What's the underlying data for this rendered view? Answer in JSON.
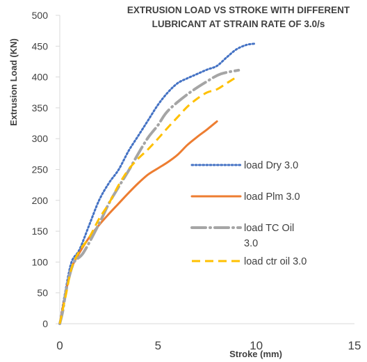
{
  "chart_data": {
    "type": "line",
    "title_line1": "EXTRUSION LOAD VS STROKE WITH DIFFERENT",
    "title_line2": "LUBRICANT AT STRAIN RATE OF 3.0/s",
    "xlabel": "Stroke (mm)",
    "ylabel": "Extrusion Load (KN)",
    "xlim": [
      0,
      15
    ],
    "ylim": [
      0,
      500
    ],
    "x_ticks": [
      "0",
      "5",
      "10",
      "15"
    ],
    "y_ticks": [
      "0",
      "50",
      "100",
      "150",
      "200",
      "250",
      "300",
      "350",
      "400",
      "450",
      "500"
    ],
    "grid": false,
    "legend_position": "right",
    "series": [
      {
        "name": "load Dry 3.0",
        "color": "#4472C4",
        "style": "dotted",
        "points": [
          [
            0,
            0
          ],
          [
            0.3,
            55
          ],
          [
            0.6,
            100
          ],
          [
            1.0,
            120
          ],
          [
            1.5,
            160
          ],
          [
            2.0,
            200
          ],
          [
            2.5,
            228
          ],
          [
            3.0,
            250
          ],
          [
            3.5,
            280
          ],
          [
            4.0,
            305
          ],
          [
            4.5,
            330
          ],
          [
            5.0,
            355
          ],
          [
            5.5,
            375
          ],
          [
            6.0,
            390
          ],
          [
            6.5,
            398
          ],
          [
            7.0,
            405
          ],
          [
            7.5,
            412
          ],
          [
            8.0,
            418
          ],
          [
            8.5,
            432
          ],
          [
            9.0,
            445
          ],
          [
            9.5,
            452
          ],
          [
            9.9,
            454
          ]
        ]
      },
      {
        "name": "load Plm 3.0",
        "color": "#ED7D31",
        "style": "solid",
        "points": [
          [
            0,
            0
          ],
          [
            0.3,
            50
          ],
          [
            0.6,
            90
          ],
          [
            1.0,
            115
          ],
          [
            1.5,
            140
          ],
          [
            2.0,
            160
          ],
          [
            2.5,
            178
          ],
          [
            3.0,
            195
          ],
          [
            3.5,
            212
          ],
          [
            4.0,
            228
          ],
          [
            4.5,
            242
          ],
          [
            5.0,
            252
          ],
          [
            5.5,
            262
          ],
          [
            6.0,
            274
          ],
          [
            6.5,
            290
          ],
          [
            7.0,
            303
          ],
          [
            7.5,
            315
          ],
          [
            8.0,
            328
          ]
        ]
      },
      {
        "name": "load TC Oil 3.0",
        "color": "#A5A5A5",
        "style": "long-dash-dot",
        "points": [
          [
            0,
            0
          ],
          [
            0.15,
            20
          ],
          [
            0.35,
            58
          ],
          [
            0.7,
            98
          ],
          [
            1.2,
            115
          ],
          [
            2.0,
            162
          ],
          [
            2.5,
            195
          ],
          [
            3.0,
            222
          ],
          [
            3.5,
            248
          ],
          [
            4.0,
            276
          ],
          [
            4.5,
            302
          ],
          [
            5.0,
            322
          ],
          [
            5.5,
            345
          ],
          [
            6.5,
            372
          ],
          [
            7.5,
            393
          ],
          [
            8.2,
            405
          ],
          [
            9.1,
            411
          ]
        ]
      },
      {
        "name": "load ctr oil 3.0",
        "color": "#FFC000",
        "style": "dashed",
        "points": [
          [
            0,
            0
          ],
          [
            0.3,
            45
          ],
          [
            0.6,
            90
          ],
          [
            1.0,
            118
          ],
          [
            1.5,
            140
          ],
          [
            2.0,
            170
          ],
          [
            2.5,
            195
          ],
          [
            3.0,
            225
          ],
          [
            3.5,
            250
          ],
          [
            4.0,
            268
          ],
          [
            4.5,
            283
          ],
          [
            5.0,
            300
          ],
          [
            5.5,
            318
          ],
          [
            6.0,
            335
          ],
          [
            6.5,
            352
          ],
          [
            7.0,
            365
          ],
          [
            7.5,
            375
          ],
          [
            8.0,
            380
          ],
          [
            8.5,
            390
          ],
          [
            9.0,
            400
          ]
        ]
      }
    ]
  }
}
